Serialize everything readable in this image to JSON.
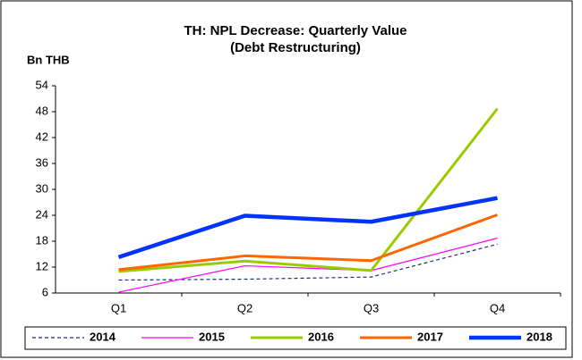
{
  "chart_data": {
    "type": "line",
    "title": "TH: NPL Decrease: Quarterly Value",
    "subtitle": "(Debt Restructuring)",
    "y_label": "Bn THB",
    "categories": [
      "Q1",
      "Q2",
      "Q3",
      "Q4"
    ],
    "series": [
      {
        "name": "2014",
        "color": "#1f2f7a",
        "line_width": 1.2,
        "line_style": "dashed",
        "values": [
          9,
          9.2,
          9.7,
          17.3
        ]
      },
      {
        "name": "2015",
        "color": "#ff00ff",
        "line_width": 1.2,
        "line_style": "solid",
        "values": [
          6.2,
          12.3,
          11.2,
          18.7
        ]
      },
      {
        "name": "2016",
        "color": "#99cc00",
        "line_width": 3,
        "line_style": "solid",
        "values": [
          11,
          13.4,
          11.2,
          48.7
        ]
      },
      {
        "name": "2017",
        "color": "#ff6600",
        "line_width": 3,
        "line_style": "solid",
        "values": [
          11.4,
          14.6,
          13.5,
          24.1
        ]
      },
      {
        "name": "2018",
        "color": "#0033ff",
        "line_width": 4.5,
        "line_style": "solid",
        "values": [
          14.3,
          23.9,
          22.5,
          28
        ]
      }
    ],
    "ylim": [
      6,
      54
    ],
    "yticks": [
      6,
      12,
      18,
      24,
      30,
      36,
      42,
      48,
      54
    ],
    "grid": false,
    "legend": "bottom"
  }
}
